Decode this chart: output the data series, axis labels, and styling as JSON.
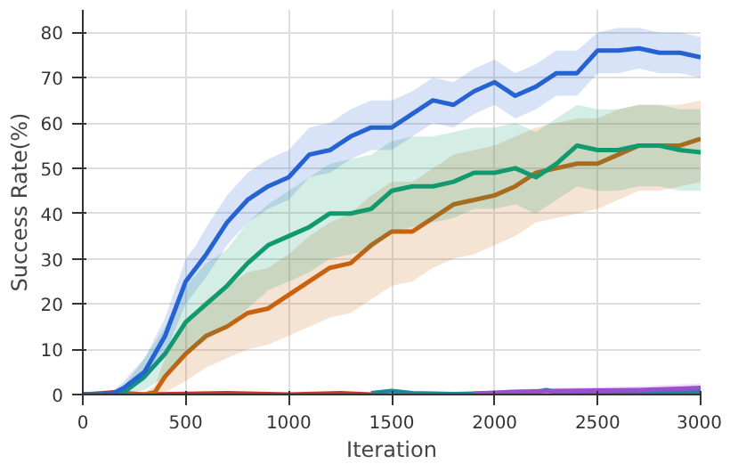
{
  "chart_data": {
    "type": "line",
    "xlabel": "Iteration",
    "ylabel": "Success Rate(%)",
    "xlim": [
      0,
      3000
    ],
    "ylim": [
      0,
      85
    ],
    "xticks": [
      0,
      500,
      1000,
      1500,
      2000,
      2500,
      3000
    ],
    "yticks": [
      0,
      10,
      20,
      30,
      40,
      50,
      60,
      70,
      80
    ],
    "grid": true,
    "marker": "none",
    "line_style": "solid",
    "series": [
      {
        "color": "#d0302a",
        "x": [
          0,
          100,
          150,
          200,
          300,
          700,
          1000,
          1250,
          1400
        ],
        "values": [
          0,
          0.3,
          0.5,
          0.3,
          0,
          0.3,
          0,
          0.3,
          0
        ]
      },
      {
        "color": "#1a8a99",
        "x": [
          1400,
          1500,
          1600,
          1800,
          2000,
          2200,
          2250,
          2300,
          2500,
          2700,
          3000
        ],
        "values": [
          0.3,
          0.8,
          0.3,
          0.1,
          0.3,
          0.5,
          1.0,
          0.5,
          0.6,
          0.5,
          0.5
        ]
      },
      {
        "color": "#9a4fd0",
        "x": [
          1900,
          2100,
          2300,
          2500,
          2700,
          2900,
          3000
        ],
        "values": [
          0.2,
          0.6,
          0.8,
          0.9,
          1.0,
          1.3,
          1.5
        ],
        "lower": [
          0,
          0.1,
          0.2,
          0.3,
          0.4,
          0.6,
          0.7
        ],
        "upper": [
          0.6,
          1.2,
          1.5,
          1.6,
          1.8,
          2.2,
          2.4
        ]
      },
      {
        "color": "#c8620e",
        "x": [
          0,
          300,
          350,
          400,
          500,
          600,
          700,
          800,
          900,
          1000,
          1100,
          1200,
          1300,
          1400,
          1500,
          1600,
          1700,
          1800,
          1900,
          2000,
          2100,
          2200,
          2300,
          2400,
          2500,
          2600,
          2700,
          2800,
          2900,
          3000
        ],
        "values": [
          0,
          0,
          0.5,
          4,
          9,
          13,
          15,
          18,
          19,
          22,
          25,
          28,
          29,
          33,
          36,
          36,
          39,
          42,
          43,
          44,
          46,
          49,
          50,
          51,
          51,
          53,
          55,
          55,
          55,
          56.5
        ],
        "lower": [
          0,
          0,
          0,
          0.5,
          3,
          6,
          8,
          10,
          11,
          13,
          15,
          17,
          18,
          21,
          24,
          25,
          28,
          30,
          31,
          33,
          35,
          38,
          39,
          40,
          41,
          43,
          45,
          45,
          46,
          47
        ],
        "upper": [
          0,
          0.5,
          2,
          8,
          16,
          21,
          24,
          27,
          28,
          31,
          35,
          38,
          40,
          44,
          47,
          47,
          50,
          53,
          54,
          55,
          57,
          59,
          60,
          61,
          61,
          63,
          64,
          64,
          64,
          65
        ]
      },
      {
        "color": "#119a6e",
        "x": [
          0,
          150,
          200,
          300,
          400,
          500,
          600,
          700,
          800,
          900,
          1000,
          1100,
          1200,
          1300,
          1400,
          1500,
          1600,
          1700,
          1800,
          1900,
          2000,
          2100,
          2200,
          2300,
          2400,
          2500,
          2600,
          2700,
          2800,
          2900,
          3000
        ],
        "values": [
          0,
          0,
          0.5,
          4,
          9,
          16,
          20,
          24,
          29,
          33,
          35,
          37,
          40,
          40,
          41,
          45,
          46,
          46,
          47,
          49,
          49,
          50,
          48,
          51,
          55,
          54,
          54,
          55,
          55,
          54,
          53.5
        ],
        "lower": [
          0,
          0,
          0,
          1,
          4,
          9,
          12,
          15,
          19,
          23,
          25,
          27,
          30,
          31,
          32,
          36,
          37,
          38,
          39,
          41,
          41,
          42,
          40,
          43,
          46,
          45,
          45,
          46,
          46,
          45,
          45
        ],
        "upper": [
          0,
          0.5,
          2,
          8,
          15,
          24,
          29,
          32,
          38,
          42,
          45,
          48,
          51,
          52,
          53,
          56,
          57,
          57,
          58,
          59,
          59,
          60,
          58,
          61,
          64,
          63,
          63,
          64,
          64,
          63,
          63
        ]
      },
      {
        "color": "#2563d3",
        "x": [
          0,
          100,
          150,
          200,
          300,
          400,
          500,
          550,
          600,
          700,
          800,
          900,
          1000,
          1100,
          1200,
          1300,
          1400,
          1500,
          1600,
          1700,
          1800,
          1900,
          2000,
          2100,
          2200,
          2300,
          2400,
          2500,
          2600,
          2700,
          2800,
          2900,
          3000
        ],
        "values": [
          0,
          0,
          0.3,
          1.5,
          5,
          13,
          25,
          28,
          31,
          38,
          43,
          46,
          48,
          53,
          54,
          57,
          59,
          59,
          62,
          65,
          64,
          67,
          69,
          66,
          68,
          71,
          71,
          76,
          76,
          76.5,
          75.5,
          75.5,
          74.5
        ],
        "lower": [
          0,
          0,
          0,
          0.5,
          3,
          9,
          20,
          23,
          26,
          33,
          38,
          41,
          43,
          48,
          49,
          52,
          54,
          54,
          57,
          60,
          59,
          62,
          64,
          61,
          63,
          66,
          66,
          71,
          71,
          72,
          71,
          71,
          70
        ],
        "upper": [
          0,
          0.3,
          1,
          3,
          8,
          17,
          30,
          33,
          37,
          44,
          49,
          52,
          54,
          59,
          60,
          63,
          65,
          65,
          67,
          70,
          69,
          72,
          74,
          71,
          73,
          76,
          76,
          80,
          81,
          81,
          80,
          80,
          79
        ]
      }
    ]
  }
}
